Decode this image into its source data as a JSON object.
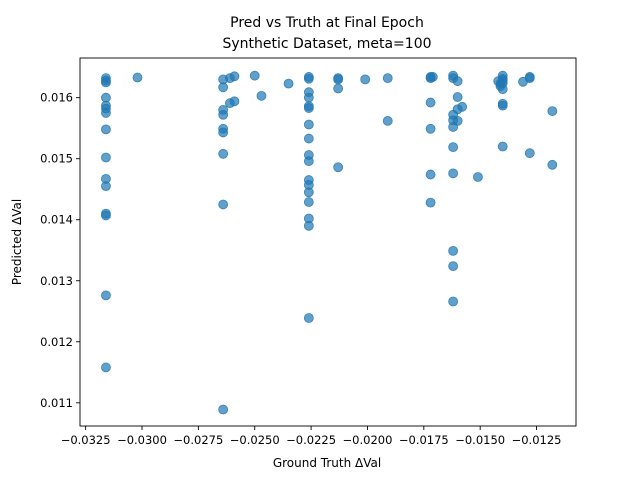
{
  "chart_data": {
    "type": "scatter",
    "title": "Pred vs Truth at Final Epoch",
    "subtitle": "Synthetic Dataset, meta=100",
    "xlabel": "Ground Truth ΔVal",
    "ylabel": "Predicted ΔVal",
    "xlim": [
      -0.03275,
      -0.01075
    ],
    "ylim": [
      0.01062,
      0.01665
    ],
    "grid": false,
    "marker_color": "#1f77b4",
    "xticks": [
      {
        "value": -0.0325,
        "label": "−0.0325"
      },
      {
        "value": -0.03,
        "label": "−0.0300"
      },
      {
        "value": -0.0275,
        "label": "−0.0275"
      },
      {
        "value": -0.025,
        "label": "−0.0250"
      },
      {
        "value": -0.0225,
        "label": "−0.0225"
      },
      {
        "value": -0.02,
        "label": "−0.0200"
      },
      {
        "value": -0.0175,
        "label": "−0.0175"
      },
      {
        "value": -0.015,
        "label": "−0.0150"
      },
      {
        "value": -0.0125,
        "label": "−0.0125"
      }
    ],
    "yticks": [
      {
        "value": 0.011,
        "label": "0.011"
      },
      {
        "value": 0.012,
        "label": "0.012"
      },
      {
        "value": 0.013,
        "label": "0.013"
      },
      {
        "value": 0.014,
        "label": "0.014"
      },
      {
        "value": 0.015,
        "label": "0.015"
      },
      {
        "value": 0.016,
        "label": "0.016"
      }
    ],
    "points": [
      [
        -0.0316,
        0.01632
      ],
      [
        -0.0316,
        0.01628
      ],
      [
        -0.0316,
        0.01625
      ],
      [
        -0.0316,
        0.016
      ],
      [
        -0.0316,
        0.01587
      ],
      [
        -0.0316,
        0.01582
      ],
      [
        -0.0316,
        0.01575
      ],
      [
        -0.0316,
        0.01548
      ],
      [
        -0.0316,
        0.01502
      ],
      [
        -0.0316,
        0.01467
      ],
      [
        -0.0316,
        0.01455
      ],
      [
        -0.0316,
        0.0141
      ],
      [
        -0.0316,
        0.01407
      ],
      [
        -0.0316,
        0.01276
      ],
      [
        -0.0316,
        0.01158
      ],
      [
        -0.0302,
        0.01633
      ],
      [
        -0.0264,
        0.0163
      ],
      [
        -0.0264,
        0.01617
      ],
      [
        -0.0264,
        0.0158
      ],
      [
        -0.0264,
        0.01572
      ],
      [
        -0.0264,
        0.01549
      ],
      [
        -0.0264,
        0.01543
      ],
      [
        -0.0264,
        0.01508
      ],
      [
        -0.0264,
        0.01425
      ],
      [
        -0.0264,
        0.01089
      ],
      [
        -0.0261,
        0.01632
      ],
      [
        -0.0261,
        0.01591
      ],
      [
        -0.0259,
        0.01635
      ],
      [
        -0.0259,
        0.01594
      ],
      [
        -0.025,
        0.01636
      ],
      [
        -0.0247,
        0.01603
      ],
      [
        -0.0235,
        0.01623
      ],
      [
        -0.0226,
        0.01634
      ],
      [
        -0.0226,
        0.01631
      ],
      [
        -0.0226,
        0.01609
      ],
      [
        -0.0226,
        0.016
      ],
      [
        -0.0226,
        0.01586
      ],
      [
        -0.0226,
        0.01583
      ],
      [
        -0.0226,
        0.01556
      ],
      [
        -0.0226,
        0.01533
      ],
      [
        -0.0226,
        0.01506
      ],
      [
        -0.0226,
        0.01496
      ],
      [
        -0.0226,
        0.01465
      ],
      [
        -0.0226,
        0.01457
      ],
      [
        -0.0226,
        0.01445
      ],
      [
        -0.0226,
        0.01429
      ],
      [
        -0.0226,
        0.01402
      ],
      [
        -0.0226,
        0.0139
      ],
      [
        -0.0226,
        0.01239
      ],
      [
        -0.0213,
        0.01632
      ],
      [
        -0.0213,
        0.0163
      ],
      [
        -0.0213,
        0.01615
      ],
      [
        -0.0213,
        0.01486
      ],
      [
        -0.0201,
        0.0163
      ],
      [
        -0.0191,
        0.01632
      ],
      [
        -0.0191,
        0.01562
      ],
      [
        -0.0172,
        0.01634
      ],
      [
        -0.0172,
        0.01632
      ],
      [
        -0.0172,
        0.01592
      ],
      [
        -0.0172,
        0.01549
      ],
      [
        -0.0172,
        0.01474
      ],
      [
        -0.0172,
        0.01428
      ],
      [
        -0.0171,
        0.01634
      ],
      [
        -0.0162,
        0.01636
      ],
      [
        -0.0162,
        0.01632
      ],
      [
        -0.0162,
        0.01572
      ],
      [
        -0.0162,
        0.01563
      ],
      [
        -0.0162,
        0.01552
      ],
      [
        -0.0162,
        0.01519
      ],
      [
        -0.0162,
        0.01476
      ],
      [
        -0.0162,
        0.01349
      ],
      [
        -0.0162,
        0.01324
      ],
      [
        -0.0162,
        0.01266
      ],
      [
        -0.016,
        0.01627
      ],
      [
        -0.016,
        0.01601
      ],
      [
        -0.016,
        0.01581
      ],
      [
        -0.016,
        0.01562
      ],
      [
        -0.0158,
        0.01585
      ],
      [
        -0.0151,
        0.0147
      ],
      [
        -0.0142,
        0.01627
      ],
      [
        -0.0141,
        0.01623
      ],
      [
        -0.0141,
        0.01619
      ],
      [
        -0.014,
        0.01636
      ],
      [
        -0.014,
        0.01631
      ],
      [
        -0.014,
        0.01628
      ],
      [
        -0.014,
        0.01624
      ],
      [
        -0.014,
        0.01614
      ],
      [
        -0.014,
        0.0159
      ],
      [
        -0.014,
        0.01587
      ],
      [
        -0.014,
        0.0152
      ],
      [
        -0.0131,
        0.01626
      ],
      [
        -0.0128,
        0.01634
      ],
      [
        -0.0128,
        0.01632
      ],
      [
        -0.0128,
        0.01509
      ],
      [
        -0.0118,
        0.01578
      ],
      [
        -0.0118,
        0.0149
      ]
    ]
  }
}
